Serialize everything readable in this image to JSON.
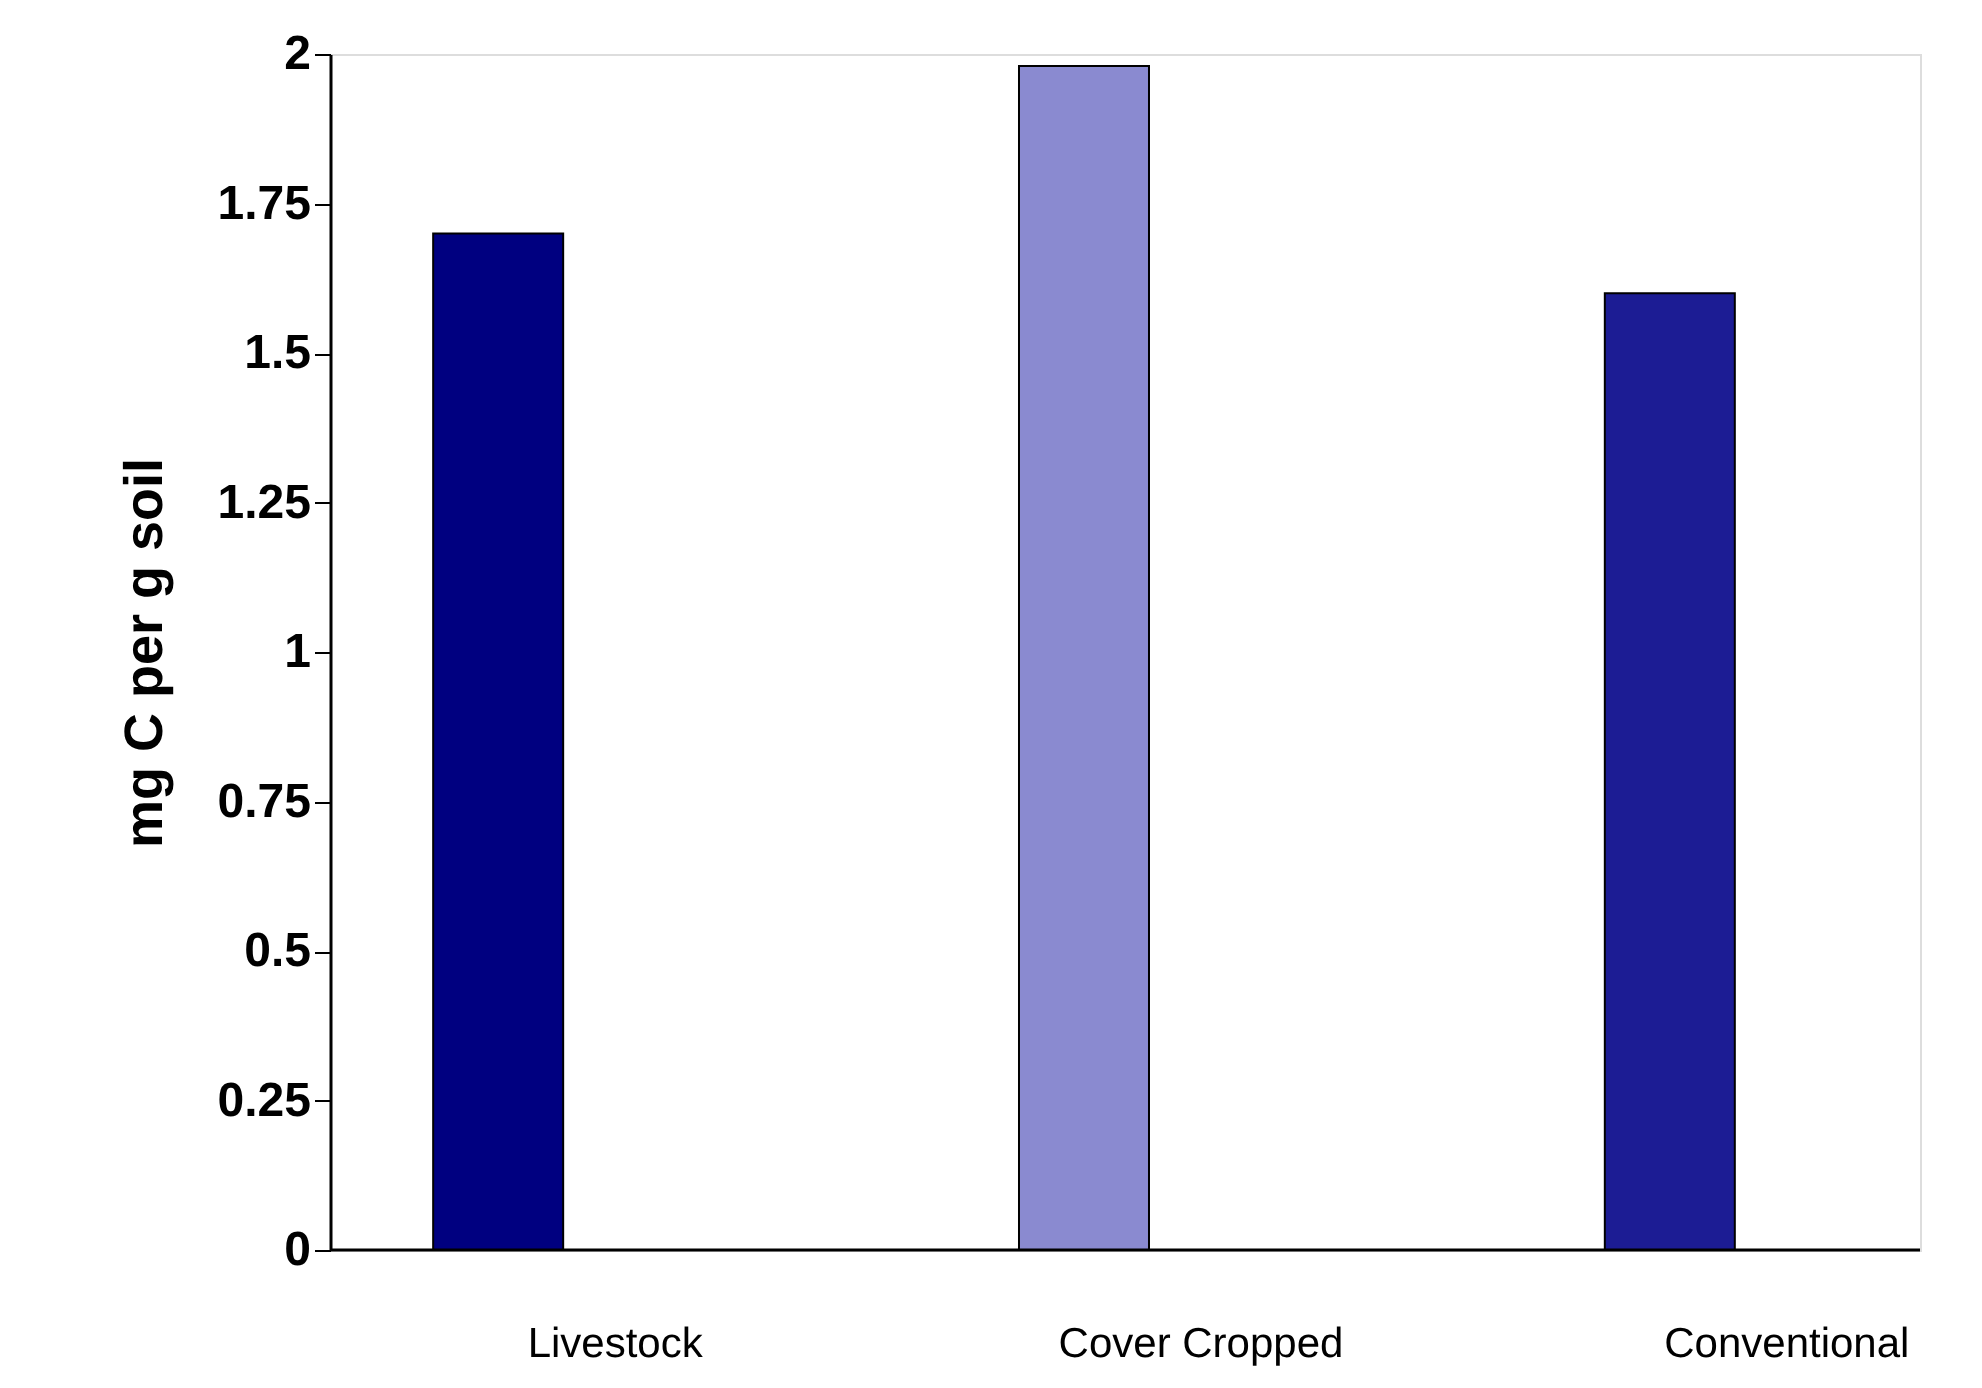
{
  "chart_data": {
    "type": "bar",
    "ylabel": "mg C per g soil",
    "categories": [
      "Livestock",
      "Cover Cropped",
      "Conventional"
    ],
    "values": [
      1.7,
      1.98,
      1.6
    ],
    "colors": [
      "#000080",
      "#8a8ad0",
      "#1c1c94"
    ],
    "ylim": [
      0,
      2
    ],
    "yticks": [
      0,
      0.25,
      0.5,
      0.75,
      1,
      1.25,
      1.5,
      1.75,
      2
    ],
    "grid": false
  }
}
